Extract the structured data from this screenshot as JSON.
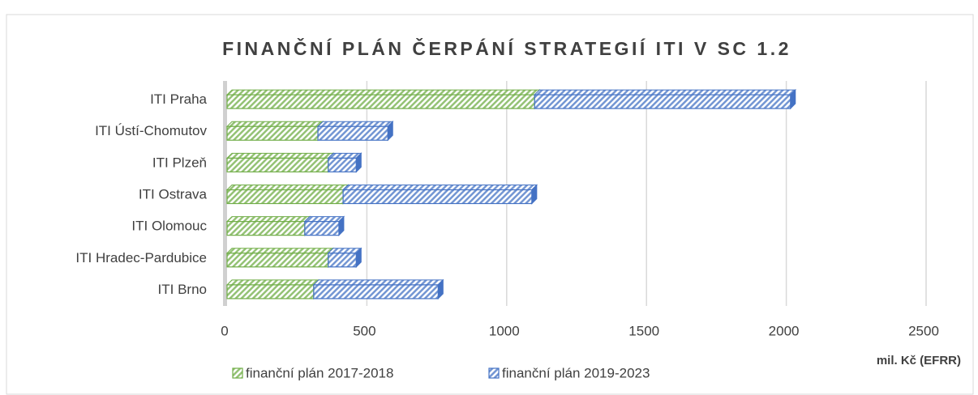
{
  "chart_data": {
    "type": "bar",
    "orientation": "horizontal",
    "stacked": true,
    "title": "FINANČNÍ PLÁN ČERPÁNÍ STRATEGIÍ ITI V SC 1.2",
    "x_label": "mil. Kč (EFRR)",
    "categories": [
      "ITI Praha",
      "ITI Ústí-Chomutov",
      "ITI Plzeň",
      "ITI Ostrava",
      "ITI Olomouc",
      "ITI Hradec-Pardubice",
      "ITI Brno"
    ],
    "series": [
      {
        "name": "finanční plán 2017-2018",
        "color": "#70ad47",
        "values": [
          1100,
          325,
          362,
          415,
          278,
          362,
          310
        ]
      },
      {
        "name": "finanční plán 2019-2023",
        "color": "#4472c4",
        "values": [
          915,
          250,
          100,
          675,
          122,
          100,
          445
        ]
      }
    ],
    "xlim": [
      0,
      2500
    ],
    "xticks": [
      0,
      500,
      1000,
      1500,
      2000,
      2500
    ],
    "grid": true,
    "legend": "bottom"
  }
}
